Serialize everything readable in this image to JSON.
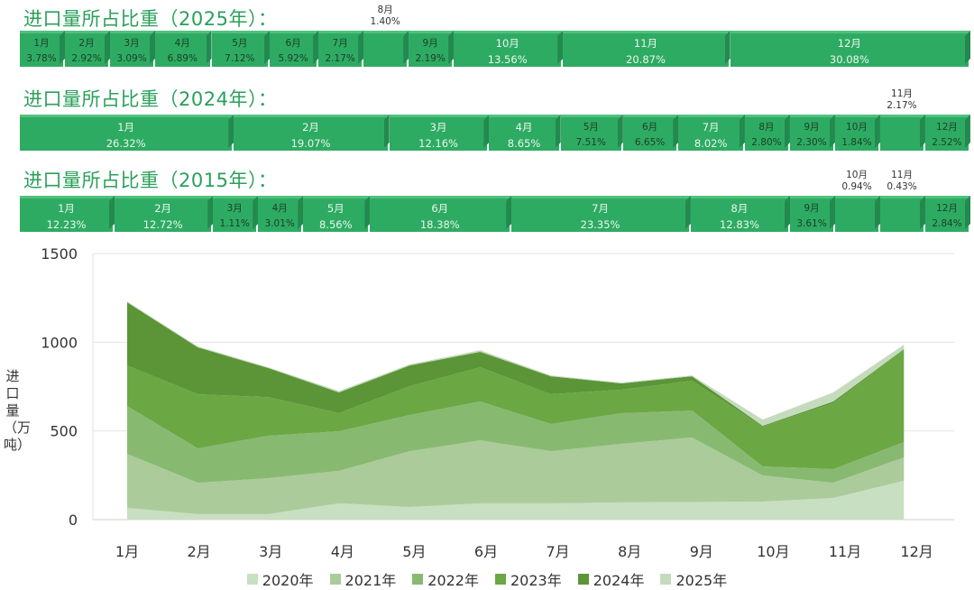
{
  "share_rows": [
    {
      "title": "进口量所占比重（2025年）：",
      "items": [
        {
          "month": "1月",
          "pct": "3.78%",
          "v": 3.78
        },
        {
          "month": "2月",
          "pct": "2.92%",
          "v": 2.92
        },
        {
          "month": "3月",
          "pct": "3.09%",
          "v": 3.09
        },
        {
          "month": "4月",
          "pct": "6.89%",
          "v": 6.89
        },
        {
          "month": "5月",
          "pct": "7.12%",
          "v": 7.12
        },
        {
          "month": "6月",
          "pct": "5.92%",
          "v": 5.92
        },
        {
          "month": "7月",
          "pct": "2.17%",
          "v": 2.17
        },
        {
          "month": "8月",
          "pct": "1.40%",
          "v": 1.4,
          "above": true
        },
        {
          "month": "9月",
          "pct": "2.19%",
          "v": 2.19
        },
        {
          "month": "10月",
          "pct": "13.56%",
          "v": 13.56
        },
        {
          "month": "11月",
          "pct": "20.87%",
          "v": 20.87
        },
        {
          "month": "12月",
          "pct": "30.08%",
          "v": 30.08
        }
      ]
    },
    {
      "title": "进口量所占比重（2024年）：",
      "items": [
        {
          "month": "1月",
          "pct": "26.32%",
          "v": 26.32
        },
        {
          "month": "2月",
          "pct": "19.07%",
          "v": 19.07
        },
        {
          "month": "3月",
          "pct": "12.16%",
          "v": 12.16
        },
        {
          "month": "4月",
          "pct": "8.65%",
          "v": 8.65
        },
        {
          "month": "5月",
          "pct": "7.51%",
          "v": 7.51
        },
        {
          "month": "6月",
          "pct": "6.65%",
          "v": 6.65
        },
        {
          "month": "7月",
          "pct": "8.02%",
          "v": 8.02
        },
        {
          "month": "8月",
          "pct": "2.80%",
          "v": 2.8
        },
        {
          "month": "9月",
          "pct": "2.30%",
          "v": 2.3
        },
        {
          "month": "10月",
          "pct": "1.84%",
          "v": 1.84
        },
        {
          "month": "11月",
          "pct": "2.17%",
          "v": 2.17,
          "above": true
        },
        {
          "month": "12月",
          "pct": "2.52%",
          "v": 2.52
        }
      ]
    },
    {
      "title": "进口量所占比重（2015年）：",
      "items": [
        {
          "month": "1月",
          "pct": "12.23%",
          "v": 12.23
        },
        {
          "month": "2月",
          "pct": "12.72%",
          "v": 12.72
        },
        {
          "month": "3月",
          "pct": "1.11%",
          "v": 1.11
        },
        {
          "month": "4月",
          "pct": "3.01%",
          "v": 3.01
        },
        {
          "month": "5月",
          "pct": "8.56%",
          "v": 8.56
        },
        {
          "month": "6月",
          "pct": "18.38%",
          "v": 18.38
        },
        {
          "month": "7月",
          "pct": "23.35%",
          "v": 23.35
        },
        {
          "month": "8月",
          "pct": "12.83%",
          "v": 12.83
        },
        {
          "month": "9月",
          "pct": "3.61%",
          "v": 3.61
        },
        {
          "month": "10月",
          "pct": "0.94%",
          "v": 0.94,
          "above": true
        },
        {
          "month": "11月",
          "pct": "0.43%",
          "v": 0.43,
          "above": true
        },
        {
          "month": "12月",
          "pct": "2.84%",
          "v": 2.84
        }
      ]
    }
  ],
  "chart_data": {
    "type": "area",
    "stacked": true,
    "ylabel": "进口量（万吨）",
    "ylim": [
      0,
      1500
    ],
    "yticks": [
      "0",
      "500",
      "1000",
      "1500"
    ],
    "ytick_values": [
      0,
      500,
      1000,
      1500
    ],
    "categories": [
      "1月",
      "2月",
      "3月",
      "4月",
      "5月",
      "6月",
      "7月",
      "8月",
      "9月",
      "10月",
      "11月",
      "12月"
    ],
    "grid": true,
    "legend": "bottom",
    "series": [
      {
        "name": "2020年",
        "color": "#c9dfc1",
        "values": [
          66,
          31,
          31,
          92,
          71,
          92,
          92,
          97,
          99,
          102,
          122,
          219
        ]
      },
      {
        "name": "2021年",
        "color": "#abcb9b",
        "values": [
          305,
          177,
          203,
          183,
          315,
          355,
          294,
          330,
          364,
          147,
          86,
          132
        ]
      },
      {
        "name": "2022年",
        "color": "#88b971",
        "values": [
          269,
          194,
          239,
          223,
          204,
          219,
          153,
          173,
          152,
          51,
          77,
          86
        ]
      },
      {
        "name": "2023年",
        "color": "#6ba743",
        "values": [
          229,
          305,
          217,
          102,
          162,
          193,
          168,
          132,
          168,
          224,
          371,
          519
        ]
      },
      {
        "name": "2024年",
        "color": "#5c9538",
        "values": [
          356,
          264,
          164,
          117,
          117,
          87,
          101,
          36,
          25,
          5,
          10,
          5
        ]
      },
      {
        "name": "2025年",
        "color": "#c4dbbd",
        "values": [
          5,
          5,
          5,
          8,
          6,
          9,
          5,
          4,
          5,
          35,
          51,
          25
        ]
      }
    ]
  }
}
